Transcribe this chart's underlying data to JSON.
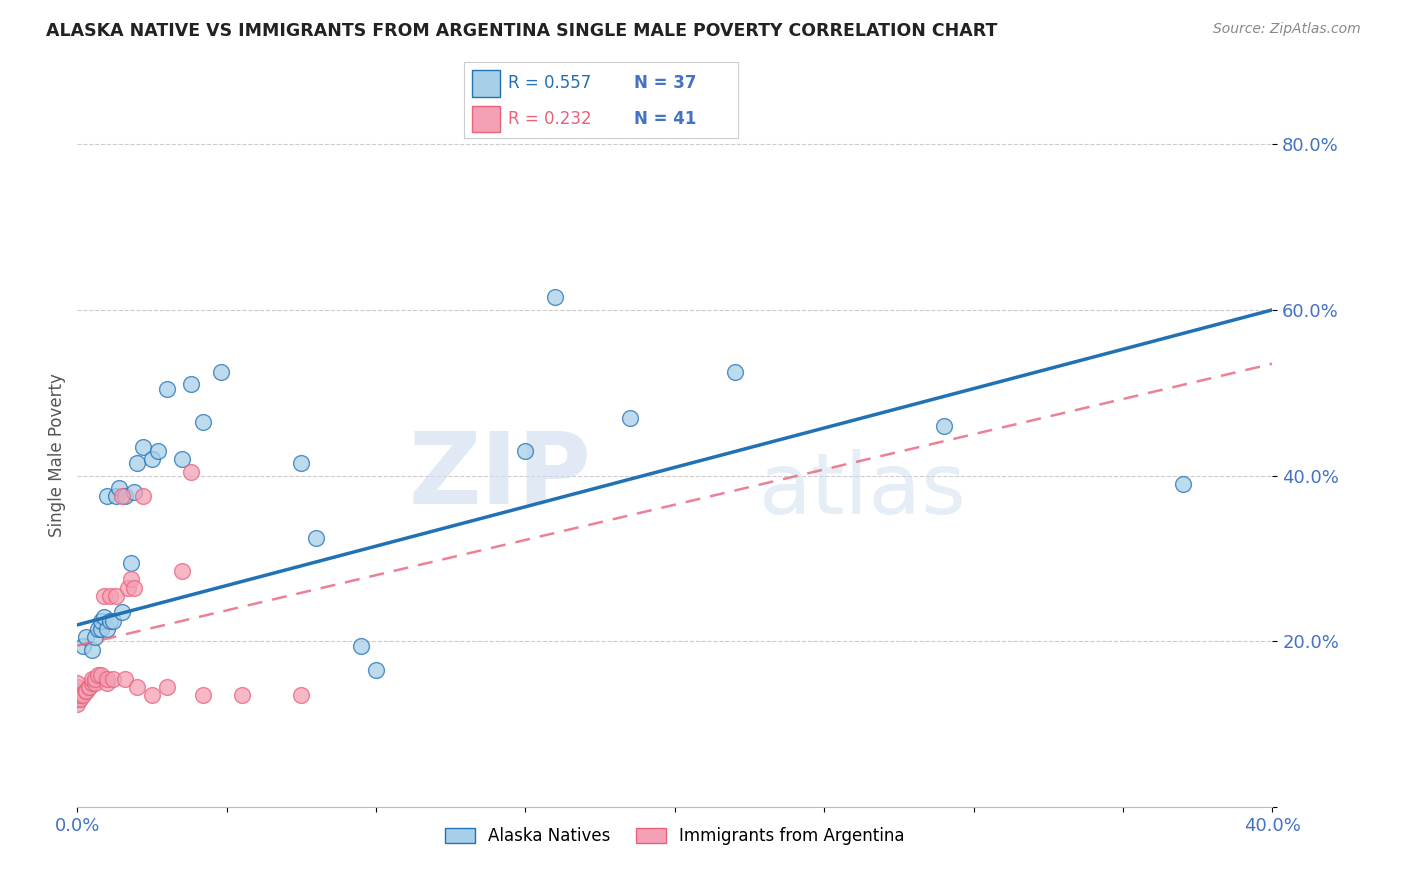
{
  "title": "ALASKA NATIVE VS IMMIGRANTS FROM ARGENTINA SINGLE MALE POVERTY CORRELATION CHART",
  "source": "Source: ZipAtlas.com",
  "ylabel": "Single Male Poverty",
  "y_ticks": [
    0.0,
    0.2,
    0.4,
    0.6,
    0.8
  ],
  "y_tick_labels": [
    "",
    "20.0%",
    "40.0%",
    "60.0%",
    "80.0%"
  ],
  "x_min": 0.0,
  "x_max": 0.4,
  "y_min": 0.0,
  "y_max": 0.85,
  "watermark_zip": "ZIP",
  "watermark_atlas": "atlas",
  "legend_r1": "R = 0.557",
  "legend_n1": "N = 37",
  "legend_r2": "R = 0.232",
  "legend_n2": "N = 41",
  "color_blue": "#a8cfe8",
  "color_pink": "#f4a0b5",
  "color_blue_dark": "#2171b5",
  "color_pink_dark": "#e8627a",
  "color_axis_labels": "#4472c4",
  "color_n_label": "#4472c4",
  "alaska_x": [
    0.002,
    0.003,
    0.005,
    0.006,
    0.007,
    0.008,
    0.008,
    0.009,
    0.01,
    0.01,
    0.011,
    0.012,
    0.013,
    0.014,
    0.015,
    0.016,
    0.018,
    0.019,
    0.02,
    0.022,
    0.025,
    0.027,
    0.03,
    0.035,
    0.038,
    0.042,
    0.048,
    0.075,
    0.08,
    0.095,
    0.1,
    0.15,
    0.16,
    0.185,
    0.22,
    0.29,
    0.37
  ],
  "alaska_y": [
    0.195,
    0.205,
    0.19,
    0.205,
    0.215,
    0.215,
    0.225,
    0.23,
    0.215,
    0.375,
    0.225,
    0.225,
    0.375,
    0.385,
    0.235,
    0.375,
    0.295,
    0.38,
    0.415,
    0.435,
    0.42,
    0.43,
    0.505,
    0.42,
    0.51,
    0.465,
    0.525,
    0.415,
    0.325,
    0.195,
    0.165,
    0.43,
    0.615,
    0.47,
    0.525,
    0.46,
    0.39
  ],
  "argentina_x": [
    0.0,
    0.0,
    0.0,
    0.0,
    0.0,
    0.0,
    0.0,
    0.0,
    0.001,
    0.001,
    0.002,
    0.003,
    0.003,
    0.004,
    0.004,
    0.005,
    0.005,
    0.006,
    0.006,
    0.007,
    0.008,
    0.009,
    0.01,
    0.01,
    0.011,
    0.012,
    0.013,
    0.015,
    0.016,
    0.017,
    0.018,
    0.019,
    0.02,
    0.022,
    0.025,
    0.03,
    0.035,
    0.038,
    0.042,
    0.055,
    0.075
  ],
  "argentina_y": [
    0.125,
    0.13,
    0.13,
    0.135,
    0.14,
    0.14,
    0.145,
    0.15,
    0.13,
    0.135,
    0.135,
    0.14,
    0.14,
    0.145,
    0.145,
    0.15,
    0.155,
    0.15,
    0.155,
    0.16,
    0.16,
    0.255,
    0.15,
    0.155,
    0.255,
    0.155,
    0.255,
    0.375,
    0.155,
    0.265,
    0.275,
    0.265,
    0.145,
    0.375,
    0.135,
    0.145,
    0.285,
    0.405,
    0.135,
    0.135,
    0.135
  ],
  "blue_line_x0": 0.0,
  "blue_line_y0": 0.22,
  "blue_line_x1": 0.4,
  "blue_line_y1": 0.6,
  "pink_line_x0": 0.0,
  "pink_line_y0": 0.195,
  "pink_line_x1": 0.4,
  "pink_line_y1": 0.535
}
